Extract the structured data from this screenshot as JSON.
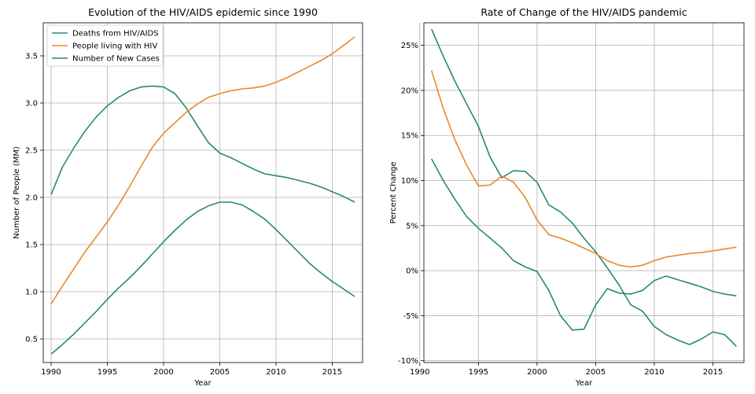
{
  "chart_data": [
    {
      "type": "line",
      "title": "Evolution of the HIV/AIDS epidemic since 1990",
      "xlabel": "Year",
      "ylabel": "Number of People (MM)",
      "xlim": [
        1989.3,
        2017.7
      ],
      "ylim": [
        0.25,
        3.85
      ],
      "xticks": [
        1990,
        1995,
        2000,
        2005,
        2010,
        2015
      ],
      "yticks": [
        0.5,
        1.0,
        1.5,
        2.0,
        2.5,
        3.0,
        3.5
      ],
      "ytick_labels": [
        "0.5",
        "1.0",
        "1.5",
        "2.0",
        "2.5",
        "3.0",
        "3.5"
      ],
      "grid": true,
      "legend_position": "upper-left",
      "x": [
        1990,
        1991,
        1992,
        1993,
        1994,
        1995,
        1996,
        1997,
        1998,
        1999,
        2000,
        2001,
        2002,
        2003,
        2004,
        2005,
        2006,
        2007,
        2008,
        2009,
        2010,
        2011,
        2012,
        2013,
        2014,
        2015,
        2016,
        2017
      ],
      "series": [
        {
          "name": "Deaths from HIV/AIDS",
          "color": "#2a8a6e",
          "values": [
            2.03,
            2.32,
            2.52,
            2.7,
            2.85,
            2.97,
            3.06,
            3.13,
            3.17,
            3.18,
            3.17,
            3.1,
            2.95,
            2.76,
            2.58,
            2.47,
            2.42,
            2.36,
            2.3,
            2.25,
            2.23,
            2.21,
            2.18,
            2.15,
            2.11,
            2.06,
            2.01,
            1.95
          ]
        },
        {
          "name": "People living with HIV",
          "color": "#e8892b",
          "values": [
            0.87,
            1.06,
            1.24,
            1.42,
            1.58,
            1.74,
            1.92,
            2.12,
            2.33,
            2.53,
            2.68,
            2.79,
            2.9,
            2.99,
            3.06,
            3.1,
            3.13,
            3.15,
            3.16,
            3.18,
            3.22,
            3.27,
            3.33,
            3.39,
            3.45,
            3.52,
            3.61,
            3.7
          ]
        },
        {
          "name": "Number of New Cases",
          "color": "#2a8a6e",
          "values": [
            0.34,
            0.44,
            0.55,
            0.67,
            0.79,
            0.92,
            1.04,
            1.15,
            1.27,
            1.4,
            1.53,
            1.65,
            1.76,
            1.85,
            1.91,
            1.95,
            1.95,
            1.92,
            1.85,
            1.77,
            1.66,
            1.54,
            1.42,
            1.3,
            1.2,
            1.11,
            1.03,
            0.95
          ]
        }
      ]
    },
    {
      "type": "line",
      "title": "Rate of Change of the HIV/AIDS pandemic",
      "xlabel": "Year",
      "ylabel": "Percent Change",
      "xlim": [
        1990.35,
        2017.65
      ],
      "ylim": [
        -10.2,
        27.5
      ],
      "xticks": [
        1990,
        1995,
        2000,
        2005,
        2010,
        2015
      ],
      "yticks": [
        -10,
        -5,
        0,
        5,
        10,
        15,
        20,
        25
      ],
      "ytick_labels": [
        "-10%",
        "-5%",
        "0%",
        "5%",
        "10%",
        "15%",
        "20%",
        "25%"
      ],
      "grid": true,
      "x": [
        1991,
        1992,
        1993,
        1994,
        1995,
        1996,
        1997,
        1998,
        1999,
        2000,
        2001,
        2002,
        2003,
        2004,
        2005,
        2006,
        2007,
        2008,
        2009,
        2010,
        2011,
        2012,
        2013,
        2014,
        2015,
        2016,
        2017
      ],
      "series": [
        {
          "color": "#2a8a6e",
          "values": [
            26.8,
            23.8,
            21,
            18.5,
            16,
            12.6,
            10.3,
            11.1,
            11,
            9.8,
            7.3,
            6.5,
            5.3,
            3.6,
            2.1,
            0.3,
            -1.6,
            -3.8,
            -4.5,
            -6.2,
            -7.1,
            -7.7,
            -8.2,
            -7.6,
            -6.8,
            -7.1,
            -8.4
          ]
        },
        {
          "color": "#e8892b",
          "values": [
            22.2,
            18,
            14.5,
            11.7,
            9.4,
            9.5,
            10.5,
            9.8,
            8.1,
            5.6,
            4,
            3.6,
            3.1,
            2.5,
            1.9,
            1.1,
            0.6,
            0.4,
            0.6,
            1.1,
            1.5,
            1.7,
            1.9,
            2,
            2.2,
            2.4,
            2.6
          ]
        },
        {
          "color": "#2a8a6e",
          "values": [
            12.4,
            10,
            7.9,
            6,
            4.7,
            3.6,
            2.5,
            1.1,
            0.4,
            -0.1,
            -2.2,
            -5,
            -6.6,
            -6.5,
            -3.8,
            -2,
            -2.5,
            -2.6,
            -2.2,
            -1.1,
            -0.6,
            -1,
            -1.4,
            -1.8,
            -2.3,
            -2.6,
            -2.8
          ]
        }
      ]
    }
  ]
}
